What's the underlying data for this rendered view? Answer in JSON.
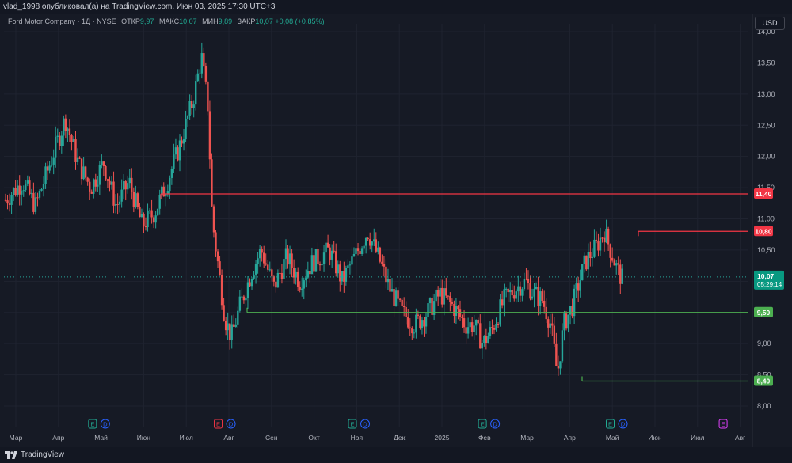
{
  "header": {
    "title": "vlad_1998 опубликовал(а) на TradingView.com, Июн 03, 2025 17:30 UTC+3"
  },
  "legend": {
    "symbol": "Ford Motor Company · 1Д · NYSE",
    "open_label": "ОТКР",
    "open_value": "9,97",
    "high_label": "МАКС",
    "high_value": "10,07",
    "low_label": "МИН",
    "low_value": "9,89",
    "close_label": "ЗАКР",
    "close_value": "10,07",
    "change": "+0,08 (+0,85%)"
  },
  "currency_button": "USD",
  "footer": {
    "brand": "TradingView"
  },
  "colors": {
    "up": "#26a69a",
    "down": "#ef5350",
    "resistance": "#f23645",
    "support": "#4caf50",
    "background": "#161a25"
  },
  "chart_data": {
    "type": "candlestick",
    "x": [
      "Мар",
      "Апр",
      "Май",
      "Июн",
      "Июл",
      "Авг",
      "Сен",
      "Окт",
      "Ноя",
      "Дек",
      "2025",
      "Фев",
      "Мар",
      "Апр",
      "Май",
      "Июн",
      "Июл",
      "Авг"
    ],
    "yticks": [
      "8,00",
      "8,50",
      "9,00",
      "9,50",
      "10,00",
      "10,50",
      "11,00",
      "11,50",
      "12,00",
      "12,50",
      "13,00",
      "13,50",
      "14,00"
    ],
    "ylim": [
      8.0,
      14.0
    ],
    "price_path": [
      [
        0,
        11.3
      ],
      [
        0.4,
        11.6
      ],
      [
        0.7,
        11.2
      ],
      [
        1.1,
        12.0
      ],
      [
        1.4,
        12.6
      ],
      [
        1.7,
        11.9
      ],
      [
        2.0,
        11.5
      ],
      [
        2.3,
        11.9
      ],
      [
        2.6,
        11.2
      ],
      [
        2.9,
        11.6
      ],
      [
        3.2,
        10.9
      ],
      [
        3.5,
        11.1
      ],
      [
        3.8,
        11.6
      ],
      [
        4.1,
        12.2
      ],
      [
        4.4,
        12.9
      ],
      [
        4.6,
        13.6
      ],
      [
        4.75,
        12.8
      ],
      [
        4.85,
        11.0
      ],
      [
        5.0,
        10.2
      ],
      [
        5.15,
        9.4
      ],
      [
        5.3,
        9.1
      ],
      [
        5.5,
        9.6
      ],
      [
        5.8,
        10.2
      ],
      [
        6.0,
        10.5
      ],
      [
        6.3,
        9.9
      ],
      [
        6.6,
        10.4
      ],
      [
        6.9,
        10.0
      ],
      [
        7.2,
        10.3
      ],
      [
        7.6,
        10.5
      ],
      [
        7.9,
        10.0
      ],
      [
        8.2,
        10.4
      ],
      [
        8.5,
        10.8
      ],
      [
        8.8,
        10.3
      ],
      [
        9.0,
        9.9
      ],
      [
        9.3,
        9.5
      ],
      [
        9.6,
        9.3
      ],
      [
        9.9,
        9.5
      ],
      [
        10.2,
        9.8
      ],
      [
        10.5,
        9.6
      ],
      [
        10.8,
        9.3
      ],
      [
        11.0,
        9.3
      ],
      [
        11.2,
        9.0
      ],
      [
        11.4,
        9.2
      ],
      [
        11.7,
        9.7
      ],
      [
        12.0,
        9.9
      ],
      [
        12.2,
        10.0
      ],
      [
        12.4,
        9.8
      ],
      [
        12.6,
        9.7
      ],
      [
        12.8,
        9.3
      ],
      [
        12.95,
        8.5
      ],
      [
        13.1,
        9.3
      ],
      [
        13.3,
        9.6
      ],
      [
        13.6,
        10.3
      ],
      [
        13.9,
        10.6
      ],
      [
        14.05,
        10.8
      ],
      [
        14.2,
        10.5
      ],
      [
        14.35,
        10.2
      ],
      [
        14.5,
        10.0
      ]
    ],
    "levels": [
      {
        "value": 11.4,
        "label": "11,40",
        "type": "resistance"
      },
      {
        "value": 10.8,
        "label": "10,80",
        "type": "resistance"
      },
      {
        "value": 9.5,
        "label": "9,50",
        "type": "support"
      },
      {
        "value": 8.4,
        "label": "8,40",
        "type": "support"
      }
    ],
    "last_price": {
      "value": 10.07,
      "label": "10,07",
      "countdown": "05:29:14"
    },
    "events": [
      {
        "at": 1.8,
        "letters": [
          "E",
          "D"
        ]
      },
      {
        "at": 4.75,
        "letters": [
          "E",
          "D"
        ]
      },
      {
        "at": 7.9,
        "letters": [
          "E",
          "D"
        ]
      },
      {
        "at": 10.95,
        "letters": [
          "E",
          "D"
        ]
      },
      {
        "at": 13.95,
        "letters": [
          "E",
          "D"
        ]
      },
      {
        "at": 16.6,
        "letters": [
          "E"
        ]
      }
    ]
  }
}
